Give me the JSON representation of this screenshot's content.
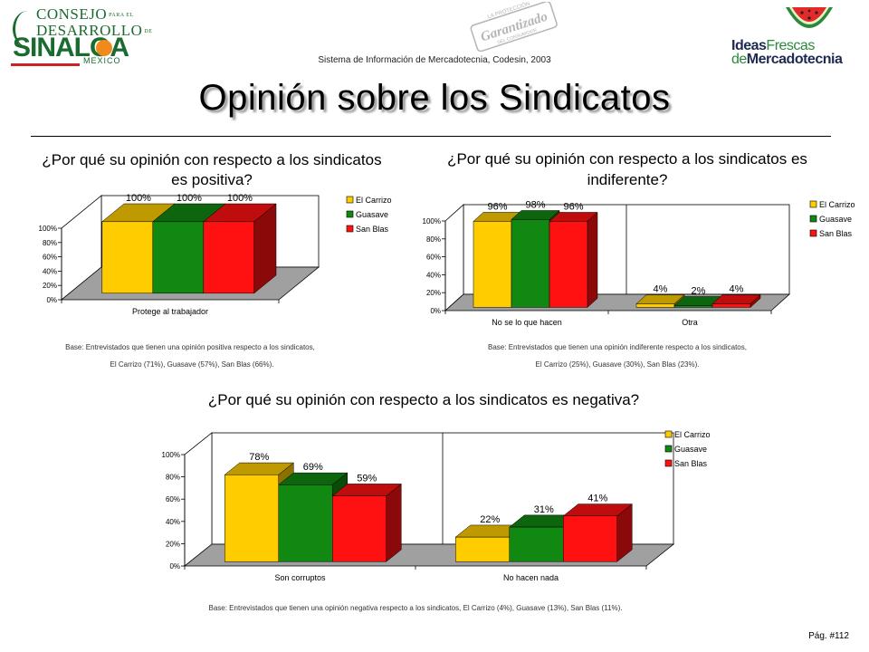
{
  "header": {
    "logo_left": {
      "line1": "CONSEJO",
      "line1_small": "PARA EL",
      "line2": "DESARROLLO",
      "line2_small": "DE",
      "line3": "SINALOA",
      "line4": "MEXICO"
    },
    "system_text": "Sistema de Información de Mercadotecnia, Codesin, 2003",
    "stamp_text": [
      "Garantizado",
      "LA PROTECCIÓN",
      "DEL CONSUMIDOR"
    ],
    "logo_right": {
      "line1_a": "Ideas",
      "line1_b": "Frescas",
      "line2_a": "de",
      "line2_b": "Mercadotecnia"
    }
  },
  "page_title": "Opinión sobre los Sindicatos",
  "page_number": "Pág. #112",
  "colors": {
    "el_carrizo": "#ffcc00",
    "guasave": "#118811",
    "san_blas": "#ff1111"
  },
  "chart_data": [
    {
      "type": "bar",
      "title_lines": [
        "¿Por qué su opinión con respecto a los sindicatos",
        "es positiva?"
      ],
      "categories": [
        "Protege al trabajador"
      ],
      "series": [
        {
          "name": "El Carrizo",
          "values": [
            100
          ],
          "labels": [
            "100%"
          ]
        },
        {
          "name": "Guasave",
          "values": [
            100
          ],
          "labels": [
            "100%"
          ]
        },
        {
          "name": "San Blas",
          "values": [
            100
          ],
          "labels": [
            "100%"
          ]
        }
      ],
      "yticks": [
        "0%",
        "20%",
        "40%",
        "60%",
        "80%",
        "100%"
      ],
      "ylim": [
        0,
        100
      ],
      "legend": "right",
      "base_lines": [
        "Base: Entrevistados que tienen una opinión positiva respecto a los sindicatos,",
        "El Carrizo (71%), Guasave (57%), San Blas (66%)."
      ]
    },
    {
      "type": "bar",
      "title_lines": [
        "¿Por qué su opinión con respecto a los sindicatos es",
        "indiferente?"
      ],
      "categories": [
        "No se lo que hacen",
        "Otra"
      ],
      "series": [
        {
          "name": "El Carrizo",
          "values": [
            96,
            4
          ],
          "labels": [
            "96%",
            "4%"
          ]
        },
        {
          "name": "Guasave",
          "values": [
            98,
            2
          ],
          "labels": [
            "98%",
            "2%"
          ]
        },
        {
          "name": "San Blas",
          "values": [
            96,
            4
          ],
          "labels": [
            "96%",
            "4%"
          ]
        }
      ],
      "yticks": [
        "0%",
        "20%",
        "40%",
        "60%",
        "80%",
        "100%"
      ],
      "ylim": [
        0,
        100
      ],
      "legend": "right",
      "base_lines": [
        "Base: Entrevistados que tienen una opinión indiferente respecto a los sindicatos,",
        "El Carrizo (25%), Guasave (30%), San Blas (23%)."
      ]
    },
    {
      "type": "bar",
      "title_lines": [
        "¿Por qué su opinión con respecto a los sindicatos es negativa?"
      ],
      "categories": [
        "Son corruptos",
        "No hacen nada"
      ],
      "series": [
        {
          "name": "El Carrizo",
          "values": [
            78,
            22
          ],
          "labels": [
            "78%",
            "22%"
          ]
        },
        {
          "name": "Guasave",
          "values": [
            69,
            31
          ],
          "labels": [
            "69%",
            "31%"
          ]
        },
        {
          "name": "San Blas",
          "values": [
            59,
            41
          ],
          "labels": [
            "59%",
            "41%"
          ]
        }
      ],
      "yticks": [
        "0%",
        "20%",
        "40%",
        "60%",
        "80%",
        "100%"
      ],
      "ylim": [
        0,
        100
      ],
      "legend": "right",
      "base_lines": [
        "Base: Entrevistados que tienen una opinión negativa respecto a los sindicatos, El Carrizo (4%), Guasave (13%), San Blas (11%)."
      ]
    }
  ]
}
